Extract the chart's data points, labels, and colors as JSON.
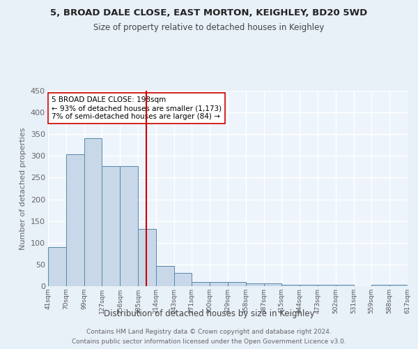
{
  "title": "5, BROAD DALE CLOSE, EAST MORTON, KEIGHLEY, BD20 5WD",
  "subtitle": "Size of property relative to detached houses in Keighley",
  "xlabel": "Distribution of detached houses by size in Keighley",
  "ylabel": "Number of detached properties",
  "footer_line1": "Contains HM Land Registry data © Crown copyright and database right 2024.",
  "footer_line2": "Contains public sector information licensed under the Open Government Licence v3.0.",
  "bar_edges": [
    41,
    70,
    99,
    127,
    156,
    185,
    214,
    243,
    271,
    300,
    329,
    358,
    387,
    415,
    444,
    473,
    502,
    531,
    559,
    588,
    617
  ],
  "bar_heights": [
    90,
    303,
    340,
    277,
    277,
    131,
    47,
    31,
    10,
    10,
    10,
    7,
    7,
    3,
    3,
    3,
    3,
    0,
    3,
    3
  ],
  "bar_color": "#c8d8e8",
  "bar_edgecolor": "#5588aa",
  "property_size": 198,
  "vline_color": "#cc0000",
  "annotation_text": "5 BROAD DALE CLOSE: 198sqm\n← 93% of detached houses are smaller (1,173)\n7% of semi-detached houses are larger (84) →",
  "annotation_box_edgecolor": "#cc0000",
  "annotation_box_facecolor": "#ffffff",
  "ylim": [
    0,
    450
  ],
  "bg_color": "#e8f0f8",
  "plot_bg_color": "#eef4fb",
  "grid_color": "#ffffff",
  "tick_labels": [
    "41sqm",
    "70sqm",
    "99sqm",
    "127sqm",
    "156sqm",
    "185sqm",
    "214sqm",
    "243sqm",
    "271sqm",
    "300sqm",
    "329sqm",
    "358sqm",
    "387sqm",
    "415sqm",
    "444sqm",
    "473sqm",
    "502sqm",
    "531sqm",
    "559sqm",
    "588sqm",
    "617sqm"
  ]
}
